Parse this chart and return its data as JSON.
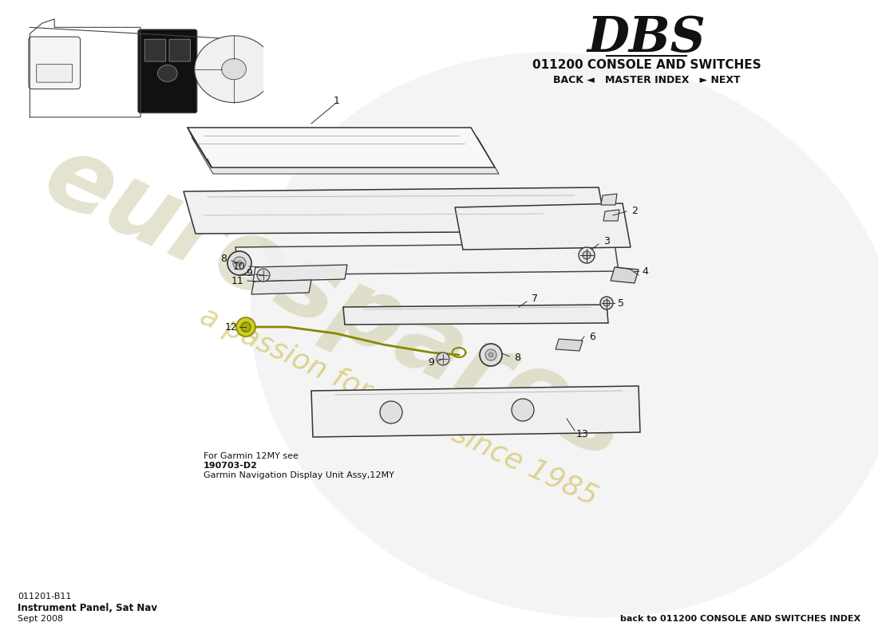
{
  "title_model": "DBS",
  "title_section": "011200 CONSOLE AND SWITCHES",
  "nav_text": "BACK ◄   MASTER INDEX   ► NEXT",
  "part_number": "011201-B11",
  "part_name": "Instrument Panel, Sat Nav",
  "date": "Sept 2008",
  "footer_right": "back to 011200 CONSOLE AND SWITCHES INDEX",
  "watermark_line1": "eurospares",
  "watermark_line2": "a passion for parts since 1985",
  "bg_color": "#ffffff",
  "annotation_text1": "For Garmin 12MY see",
  "annotation_text2": "190703-D2",
  "annotation_text3": "Garmin Navigation Display Unit Assy,12MY"
}
